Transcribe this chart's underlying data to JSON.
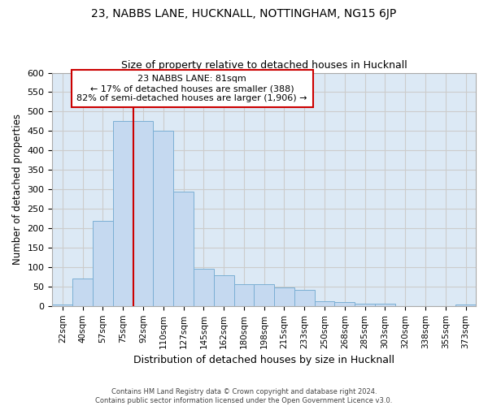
{
  "title1": "23, NABBS LANE, HUCKNALL, NOTTINGHAM, NG15 6JP",
  "title2": "Size of property relative to detached houses in Hucknall",
  "xlabel": "Distribution of detached houses by size in Hucknall",
  "ylabel": "Number of detached properties",
  "footer1": "Contains HM Land Registry data © Crown copyright and database right 2024.",
  "footer2": "Contains public sector information licensed under the Open Government Licence v3.0.",
  "categories": [
    "22sqm",
    "40sqm",
    "57sqm",
    "75sqm",
    "92sqm",
    "110sqm",
    "127sqm",
    "145sqm",
    "162sqm",
    "180sqm",
    "198sqm",
    "215sqm",
    "233sqm",
    "250sqm",
    "268sqm",
    "285sqm",
    "303sqm",
    "320sqm",
    "338sqm",
    "355sqm",
    "373sqm"
  ],
  "values": [
    4,
    70,
    218,
    475,
    475,
    450,
    295,
    95,
    80,
    57,
    57,
    48,
    42,
    12,
    11,
    5,
    5,
    0,
    0,
    0,
    4
  ],
  "bar_color": "#c5d9f0",
  "bar_edge_color": "#7bafd4",
  "property_label": "23 NABBS LANE: 81sqm",
  "annotation_line1": "← 17% of detached houses are smaller (388)",
  "annotation_line2": "82% of semi-detached houses are larger (1,906) →",
  "vline_color": "#cc0000",
  "vline_x": 3.5,
  "annotation_box_color": "#ffffff",
  "annotation_box_edge": "#cc0000",
  "ylim": [
    0,
    600
  ],
  "yticks": [
    0,
    50,
    100,
    150,
    200,
    250,
    300,
    350,
    400,
    450,
    500,
    550,
    600
  ],
  "grid_color": "#cccccc",
  "bg_color": "#dce9f5",
  "fig_bg_color": "#ffffff"
}
